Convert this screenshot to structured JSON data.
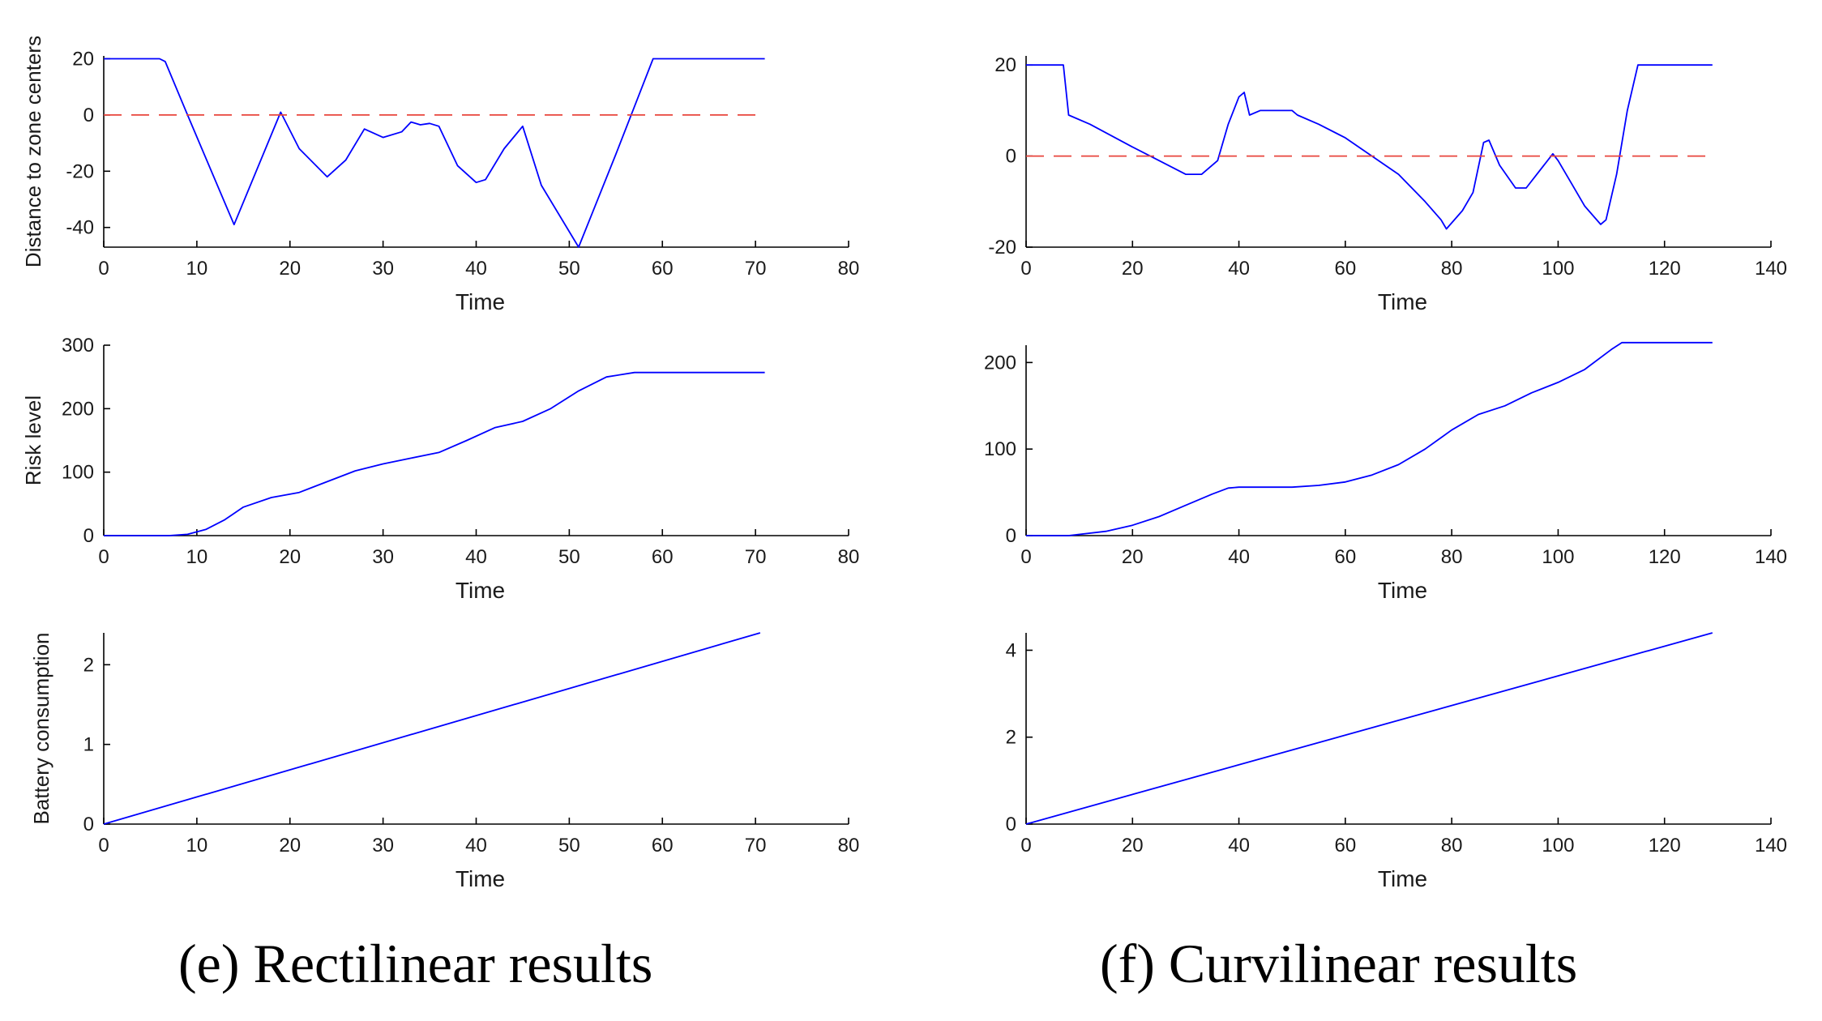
{
  "captions": {
    "left": "(e) Rectilinear results",
    "right": "(f) Curvilinear results"
  },
  "colors": {
    "series": "#0000ff",
    "reference": "#e8453c",
    "axis": "#000000"
  },
  "chart_data": [
    {
      "id": "rect-distance",
      "type": "line",
      "title": "",
      "xlabel": "Time",
      "ylabel": "Distance to zone centers",
      "xlim": [
        0,
        80
      ],
      "ylim": [
        -47,
        21
      ],
      "xticks": [
        0,
        10,
        20,
        30,
        40,
        50,
        60,
        70,
        80
      ],
      "yticks": [
        -40,
        -20,
        0,
        20
      ],
      "grid": false,
      "series": [
        {
          "style": "solid",
          "color": "#0000ff",
          "x": [
            0,
            6,
            6.6,
            9,
            14,
            19,
            21,
            24,
            26,
            28,
            30,
            32,
            33,
            34,
            35,
            36,
            38,
            40,
            41,
            43,
            45,
            47,
            51,
            55,
            59,
            71
          ],
          "y": [
            20,
            20,
            19,
            0,
            -39,
            1,
            -12,
            -22,
            -16,
            -5,
            -8,
            -6,
            -2.5,
            -3.5,
            -3,
            -4,
            -18,
            -24,
            -23,
            -12,
            -4,
            -25,
            -47,
            -14,
            20,
            20
          ]
        },
        {
          "style": "dashed",
          "color": "#e8453c",
          "x": [
            0,
            71
          ],
          "y": [
            0,
            0
          ]
        }
      ]
    },
    {
      "id": "curv-distance",
      "type": "line",
      "title": "",
      "xlabel": "Time",
      "ylabel": "",
      "xlim": [
        0,
        140
      ],
      "ylim": [
        -20,
        22
      ],
      "xticks": [
        0,
        20,
        40,
        60,
        80,
        100,
        120,
        140
      ],
      "yticks": [
        -20,
        0,
        20
      ],
      "grid": false,
      "series": [
        {
          "style": "solid",
          "color": "#0000ff",
          "x": [
            0,
            7,
            8,
            12,
            20,
            25,
            30,
            33,
            36,
            38,
            40,
            41,
            42,
            44,
            46,
            50,
            51,
            55,
            60,
            65,
            70,
            75,
            78,
            79,
            82,
            84,
            86,
            87,
            89,
            92,
            94,
            96,
            99,
            100,
            102,
            105,
            108,
            109,
            111,
            113,
            115,
            129
          ],
          "y": [
            20,
            20,
            9,
            7,
            2,
            -1,
            -4,
            -4,
            -1,
            7,
            13,
            14,
            9,
            10,
            10,
            10,
            9,
            7,
            4,
            0,
            -4,
            -10,
            -14,
            -16,
            -12,
            -8,
            3,
            3.5,
            -2,
            -7,
            -7,
            -4,
            0.5,
            -1,
            -5,
            -11,
            -15,
            -14,
            -4,
            10,
            20,
            20
          ]
        },
        {
          "style": "dashed",
          "color": "#e8453c",
          "x": [
            0,
            129
          ],
          "y": [
            0,
            0
          ]
        }
      ]
    },
    {
      "id": "rect-risk",
      "type": "line",
      "title": "",
      "xlabel": "Time",
      "ylabel": "Risk level",
      "xlim": [
        0,
        80
      ],
      "ylim": [
        0,
        300
      ],
      "xticks": [
        0,
        10,
        20,
        30,
        40,
        50,
        60,
        70,
        80
      ],
      "yticks": [
        0,
        100,
        200,
        300
      ],
      "grid": false,
      "series": [
        {
          "style": "solid",
          "color": "#0000ff",
          "x": [
            0,
            7,
            9,
            11,
            13,
            15,
            18,
            21,
            24,
            27,
            30,
            33,
            36,
            39,
            42,
            45,
            48,
            51,
            54,
            57,
            71
          ],
          "y": [
            0,
            0,
            2,
            10,
            25,
            45,
            60,
            68,
            85,
            102,
            113,
            122,
            131,
            150,
            170,
            180,
            200,
            228,
            250,
            257,
            257
          ]
        }
      ]
    },
    {
      "id": "curv-risk",
      "type": "line",
      "title": "",
      "xlabel": "Time",
      "ylabel": "",
      "xlim": [
        0,
        140
      ],
      "ylim": [
        0,
        220
      ],
      "xticks": [
        0,
        20,
        40,
        60,
        80,
        100,
        120,
        140
      ],
      "yticks": [
        0,
        100,
        200
      ],
      "grid": false,
      "series": [
        {
          "style": "solid",
          "color": "#0000ff",
          "x": [
            0,
            8,
            15,
            20,
            25,
            30,
            35,
            38,
            40,
            45,
            50,
            55,
            60,
            65,
            70,
            75,
            80,
            85,
            90,
            95,
            100,
            105,
            110,
            112,
            129
          ],
          "y": [
            0,
            0,
            5,
            12,
            22,
            35,
            48,
            55,
            56,
            56,
            56,
            58,
            62,
            70,
            82,
            100,
            122,
            140,
            150,
            165,
            177,
            192,
            215,
            223,
            223
          ]
        }
      ]
    },
    {
      "id": "rect-battery",
      "type": "line",
      "title": "",
      "xlabel": "Time",
      "ylabel": "Battery consumption",
      "xlim": [
        0,
        80
      ],
      "ylim": [
        0,
        2.4
      ],
      "xticks": [
        0,
        10,
        20,
        30,
        40,
        50,
        60,
        70,
        80
      ],
      "yticks": [
        0,
        1,
        2
      ],
      "grid": false,
      "series": [
        {
          "style": "solid",
          "color": "#0000ff",
          "x": [
            0,
            70.5
          ],
          "y": [
            0,
            2.4
          ]
        }
      ]
    },
    {
      "id": "curv-battery",
      "type": "line",
      "title": "",
      "xlabel": "Time",
      "ylabel": "",
      "xlim": [
        0,
        140
      ],
      "ylim": [
        0,
        4.4
      ],
      "xticks": [
        0,
        20,
        40,
        60,
        80,
        100,
        120,
        140
      ],
      "yticks": [
        0,
        2,
        4
      ],
      "grid": false,
      "series": [
        {
          "style": "solid",
          "color": "#0000ff",
          "x": [
            0,
            129
          ],
          "y": [
            0,
            4.4
          ]
        }
      ]
    }
  ]
}
